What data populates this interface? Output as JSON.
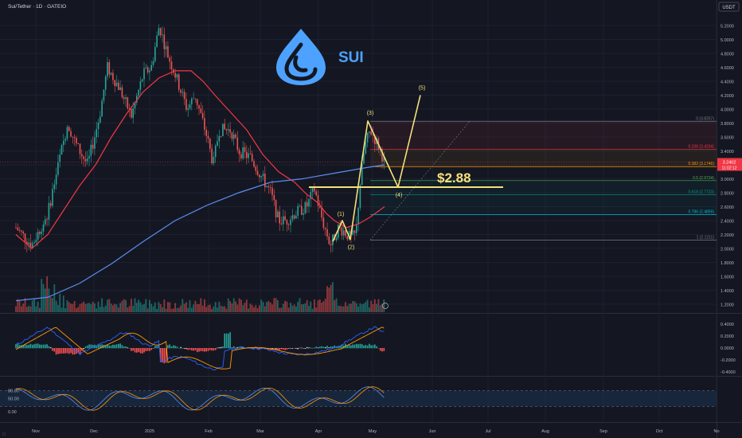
{
  "header": {
    "symbol_title": "Sui/Tether · 1D · GATEIO",
    "currency_label": "USDT"
  },
  "logo": {
    "icon": "sui-drop-icon",
    "text": "SUI",
    "color": "#4da2ff"
  },
  "colors": {
    "bg": "#141722",
    "up": "#26a69a",
    "down": "#ef5350",
    "ema_red": "#f23645",
    "ma_blue": "#5b8def",
    "wave": "#f5e07a",
    "macd_line": "#2962ff",
    "signal_line": "#ff9800",
    "stoch_fill": "#1b3555"
  },
  "price_axis": {
    "ticks": [
      "5.2000",
      "5.0000",
      "4.8000",
      "4.6000",
      "4.4000",
      "4.2000",
      "4.0000",
      "3.8000",
      "3.6000",
      "3.4000",
      "3.2000",
      "3.0000",
      "2.8000",
      "2.6000",
      "2.4000",
      "2.2000",
      "2.0000",
      "1.8000",
      "1.6000",
      "1.4000",
      "1.2000"
    ],
    "last_price": "3.2402",
    "countdown": "11:02:12"
  },
  "time_axis": {
    "labels": [
      "Nov",
      "Dec",
      "2025",
      "Feb",
      "Mar",
      "Apr",
      "May",
      "Jun",
      "Jul",
      "Aug",
      "Sep",
      "Oct",
      "No"
    ]
  },
  "macd_axis": {
    "ticks": [
      "0.4000",
      "0.2000",
      "0.0000",
      "-0.2000",
      "-0.4000"
    ]
  },
  "stoch_axis": {
    "ticks": [
      "80.00",
      "50.00",
      "0.00"
    ]
  },
  "fib_levels": [
    {
      "label": "0 (3.8257)",
      "color": "#787b86"
    },
    {
      "label": "0.236 (3.4234)",
      "color": "#f23645"
    },
    {
      "label": "0.382 (3.1746)",
      "color": "#ff9800"
    },
    {
      "label": "0.5 (2.9734)",
      "color": "#4caf50"
    },
    {
      "label": "0.618 (2.7723)",
      "color": "#089981"
    },
    {
      "label": "0.786 (2.4859)",
      "color": "#00bcd4"
    },
    {
      "label": "1 (2.1211)",
      "color": "#787b86"
    }
  ],
  "target_label": "$2.88",
  "wave_labels": [
    "(1)",
    "(2)",
    "(3)",
    "(4)",
    "(5)"
  ],
  "chart_data": {
    "type": "candlestick",
    "title": "Sui/Tether · 1D · GATEIO",
    "y_unit": "USDT",
    "ylim": [
      1.1,
      5.3
    ],
    "grid": true,
    "key_points": [
      {
        "label": "(1)",
        "price": 2.4
      },
      {
        "label": "(2)",
        "price": 2.13
      },
      {
        "label": "(3)",
        "price": 3.83
      },
      {
        "label": "(4)",
        "price": 2.88
      },
      {
        "label": "(5)",
        "price": 4.2
      }
    ],
    "fib_retracement": [
      {
        "ratio": 0,
        "price": 3.8257
      },
      {
        "ratio": 0.236,
        "price": 3.4234
      },
      {
        "ratio": 0.382,
        "price": 3.1746
      },
      {
        "ratio": 0.5,
        "price": 2.9734
      },
      {
        "ratio": 0.618,
        "price": 2.7723
      },
      {
        "ratio": 0.786,
        "price": 2.4859
      },
      {
        "ratio": 1,
        "price": 2.1211
      }
    ],
    "last_price": 3.2402,
    "target": 2.88
  }
}
